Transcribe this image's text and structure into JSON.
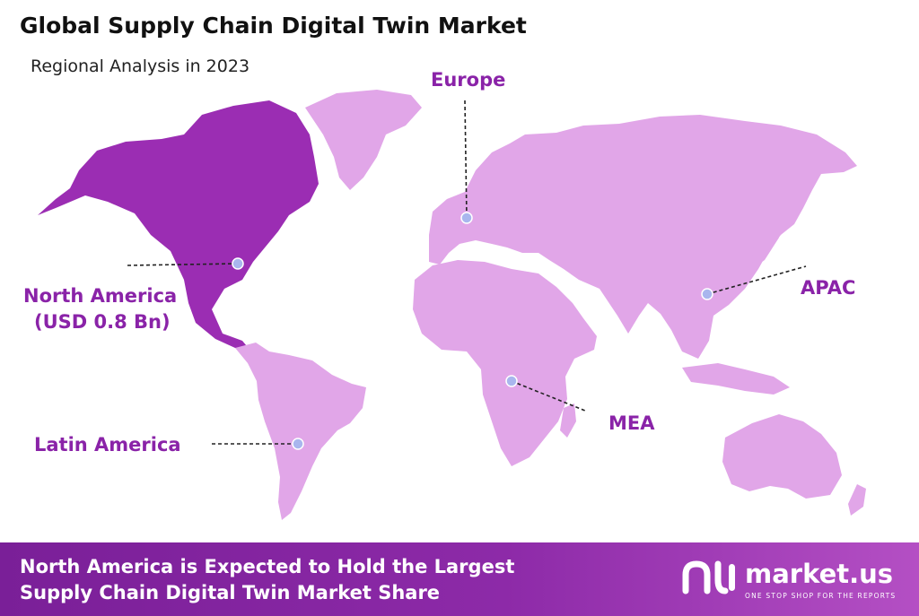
{
  "title": "Global Supply Chain Digital Twin Market",
  "subtitle": "Regional Analysis in 2023",
  "colors": {
    "highlight_region": "#9b2db3",
    "other_regions": "#e1a6e8",
    "label_text": "#8a23a8",
    "marker": "#a9b6ee",
    "footer_bg": "#7a1f98"
  },
  "regions": [
    {
      "id": "north-america",
      "name": "North America",
      "value": "(USD 0.8 Bn)",
      "highlighted": true
    },
    {
      "id": "europe",
      "name": "Europe"
    },
    {
      "id": "apac",
      "name": "APAC"
    },
    {
      "id": "mea",
      "name": "MEA"
    },
    {
      "id": "latin-america",
      "name": "Latin America"
    }
  ],
  "footer": {
    "line1": "North America is Expected to Hold the Largest",
    "line2": "Supply Chain Digital Twin Market Share"
  },
  "logo": {
    "name": "market.us",
    "tagline": "ONE STOP SHOP FOR THE REPORTS",
    "icon": "market-us-logo-icon"
  }
}
